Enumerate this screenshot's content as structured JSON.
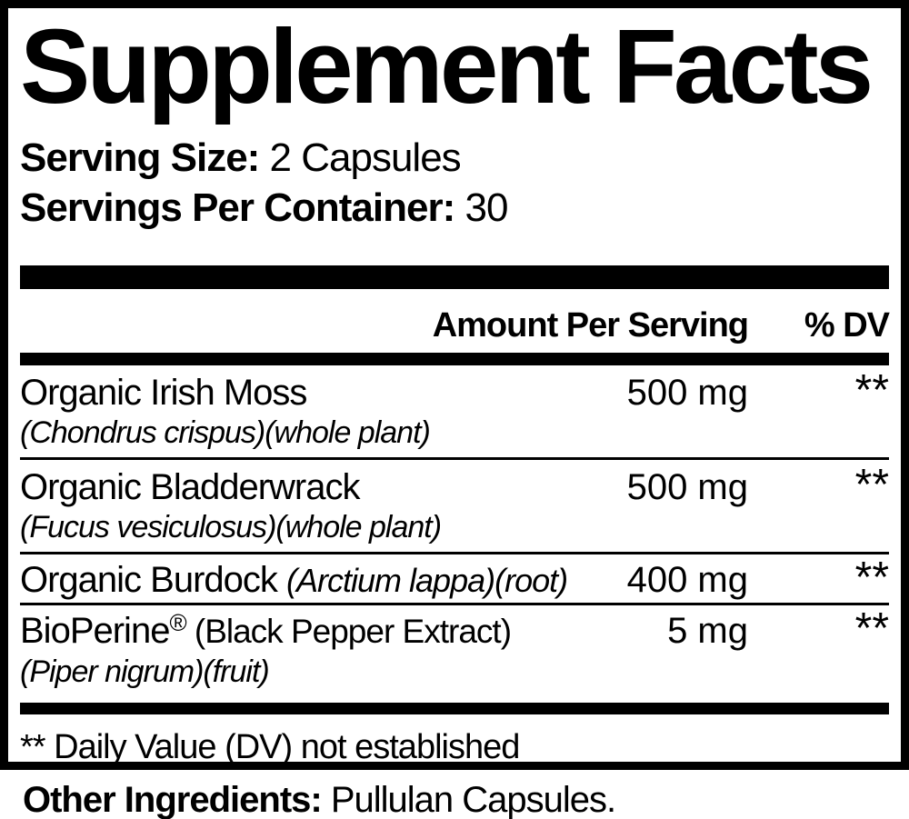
{
  "label": {
    "title": "Supplement Facts",
    "serving_size": {
      "label": "Serving Size:",
      "value": " 2 Capsules"
    },
    "servings_per_container": {
      "label": "Servings Per Container:",
      "value": " 30"
    },
    "columns": {
      "amount_header": "Amount Per Serving",
      "dv_header": "% DV"
    },
    "rows": [
      {
        "name_parts": [
          {
            "text": "Organic Irish Moss",
            "style": "regular"
          }
        ],
        "subline": "(Chondrus crispus)(whole plant)",
        "amount": "500 mg",
        "dv": "**"
      },
      {
        "name_parts": [
          {
            "text": "Organic Bladderwrack",
            "style": "regular"
          }
        ],
        "subline": "(Fucus vesiculosus)(whole plant)",
        "amount": "500 mg",
        "dv": "**"
      },
      {
        "name_parts": [
          {
            "text": "Organic Burdock ",
            "style": "regular"
          },
          {
            "text": "(Arctium lappa)(root)",
            "style": "italic"
          }
        ],
        "subline": null,
        "amount": "400 mg",
        "dv": "**"
      },
      {
        "name_parts": [
          {
            "text": "BioPerine",
            "style": "regular"
          },
          {
            "text": "®",
            "style": "sup"
          },
          {
            "text": " (Black Pepper Extract)",
            "style": "paren"
          }
        ],
        "subline": "(Piper nigrum)(fruit)",
        "amount": "5 mg",
        "dv": "**"
      }
    ],
    "footnote": "** Daily Value (DV) not established",
    "other_ingredients": {
      "label": "Other Ingredients:",
      "value": " Pullulan Capsules."
    },
    "colors": {
      "ink": "#000000",
      "background": "#ffffff"
    }
  }
}
